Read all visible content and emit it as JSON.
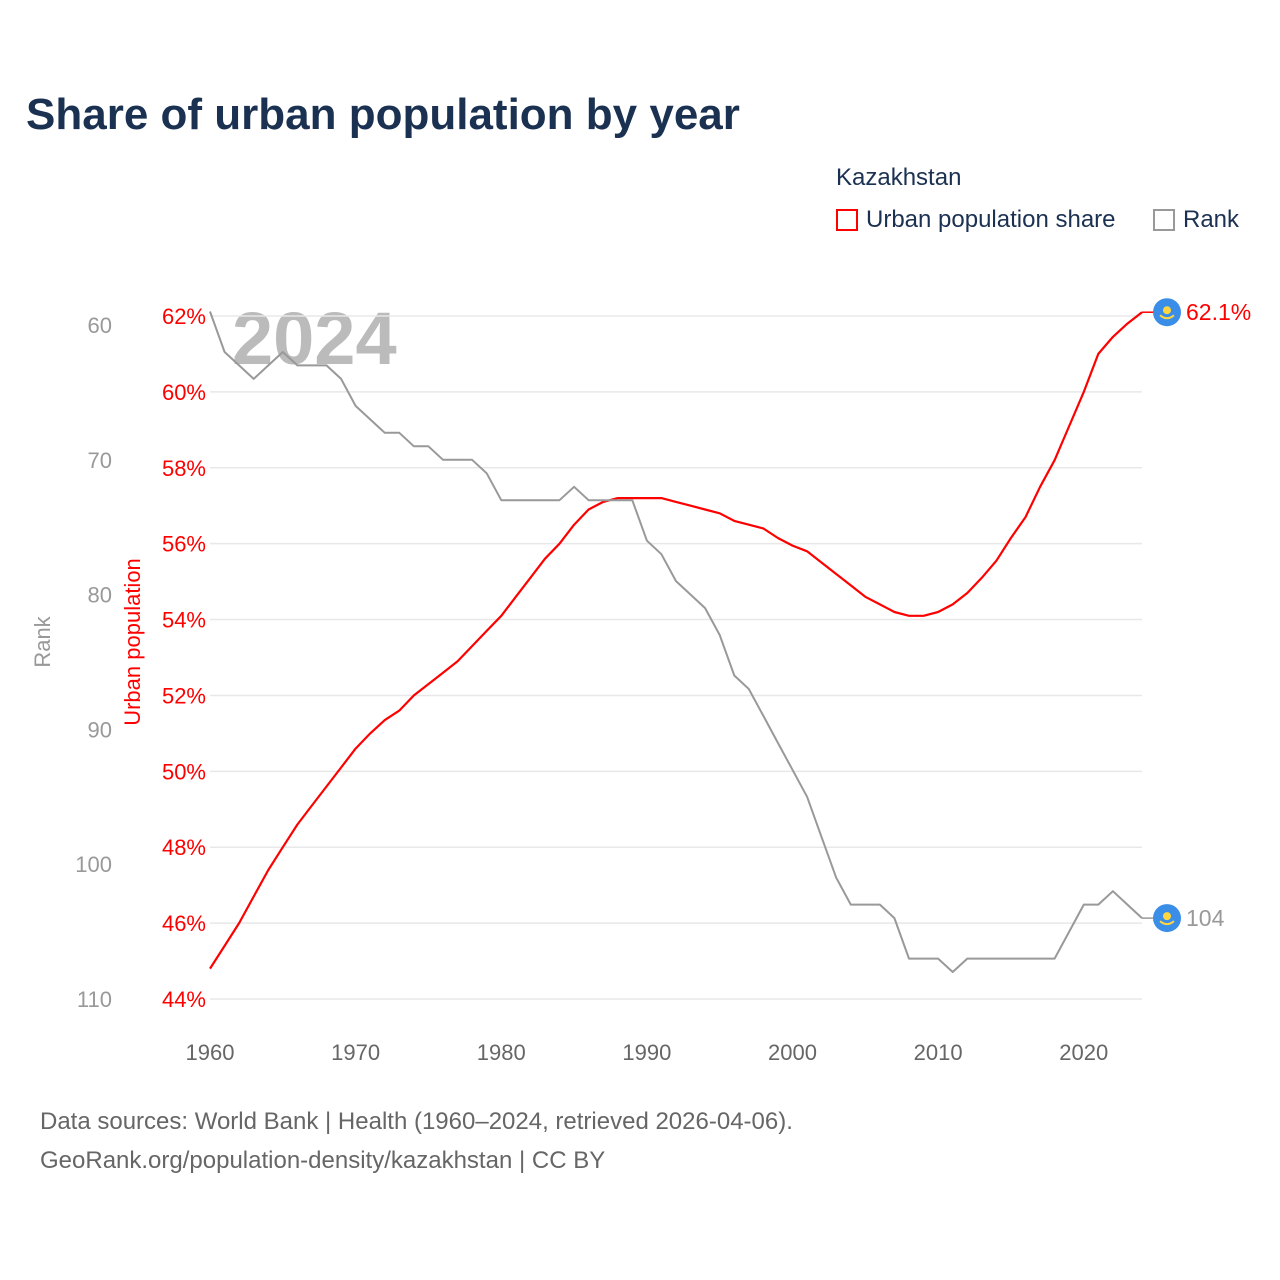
{
  "chart_data": {
    "type": "line",
    "title": "Share of urban population by year",
    "legend_title": "Kazakhstan",
    "legend_placement": "top-right",
    "watermark_year": "2024",
    "x": [
      1960,
      1961,
      1962,
      1963,
      1964,
      1965,
      1966,
      1967,
      1968,
      1969,
      1970,
      1971,
      1972,
      1973,
      1974,
      1975,
      1976,
      1977,
      1978,
      1979,
      1980,
      1981,
      1982,
      1983,
      1984,
      1985,
      1986,
      1987,
      1988,
      1989,
      1990,
      1991,
      1992,
      1993,
      1994,
      1995,
      1996,
      1997,
      1998,
      1999,
      2000,
      2001,
      2002,
      2003,
      2004,
      2005,
      2006,
      2007,
      2008,
      2009,
      2010,
      2011,
      2012,
      2013,
      2014,
      2015,
      2016,
      2017,
      2018,
      2019,
      2020,
      2021,
      2022,
      2023,
      2024
    ],
    "series": [
      {
        "name": "Urban population share",
        "axis": "left-inner",
        "color": "#ff0000",
        "end_label": "62.1%",
        "values": [
          44.8,
          45.4,
          46.0,
          46.7,
          47.4,
          48.0,
          48.6,
          49.1,
          49.6,
          50.1,
          50.6,
          51.0,
          51.35,
          51.6,
          52.0,
          52.3,
          52.6,
          52.9,
          53.3,
          53.7,
          54.1,
          54.6,
          55.1,
          55.6,
          56.0,
          56.5,
          56.9,
          57.1,
          57.2,
          57.2,
          57.2,
          57.2,
          57.1,
          57.0,
          56.9,
          56.8,
          56.6,
          56.5,
          56.4,
          56.15,
          55.95,
          55.8,
          55.5,
          55.2,
          54.9,
          54.6,
          54.4,
          54.2,
          54.1,
          54.1,
          54.2,
          54.4,
          54.7,
          55.1,
          55.55,
          56.15,
          56.7,
          57.5,
          58.2,
          59.1,
          60.0,
          61.0,
          61.45,
          61.8,
          62.1
        ]
      },
      {
        "name": "Rank",
        "axis": "left-outer",
        "color": "#999999",
        "end_label": "104",
        "values": [
          59,
          62,
          63,
          64,
          63,
          62,
          63,
          63,
          63,
          64,
          66,
          67,
          68,
          68,
          69,
          69,
          70,
          70,
          70,
          71,
          73,
          73,
          73,
          73,
          73,
          72,
          73,
          73,
          73,
          73,
          76,
          77,
          79,
          80,
          81,
          83,
          86,
          87,
          89,
          91,
          93,
          95,
          98,
          101,
          103,
          103,
          103,
          104,
          107,
          107,
          107,
          108,
          107,
          107,
          107,
          107,
          107,
          107,
          107,
          105,
          103,
          103,
          102,
          103,
          104
        ]
      }
    ],
    "x_ticks": [
      "1960",
      "1970",
      "1980",
      "1990",
      "2000",
      "2010",
      "2020"
    ],
    "x_tick_values": [
      1960,
      1970,
      1980,
      1990,
      2000,
      2010,
      2020
    ],
    "y_left_inner": {
      "label": "Urban population",
      "ylim": [
        44,
        62
      ],
      "ticks": [
        44,
        46,
        48,
        50,
        52,
        54,
        56,
        58,
        60,
        62
      ],
      "tick_labels": [
        "44%",
        "46%",
        "48%",
        "50%",
        "52%",
        "54%",
        "56%",
        "58%",
        "60%",
        "62%"
      ]
    },
    "y_left_outer": {
      "label": "Rank",
      "ylim": [
        60,
        110
      ],
      "inverted": true,
      "ticks": [
        60,
        70,
        80,
        90,
        100,
        110
      ],
      "tick_labels": [
        "60",
        "70",
        "80",
        "90",
        "100",
        "110"
      ]
    },
    "xlim": [
      1960,
      2024
    ],
    "grid": true
  },
  "footer": {
    "source": "Data sources: World Bank | Health (1960–2024, retrieved 2026-04-06).",
    "credit": "GeoRank.org/population-density/kazakhstan | CC BY"
  },
  "colors": {
    "title": "#1b3152",
    "urban": "#ff0000",
    "rank": "#999999",
    "flag_blue": "#3b8ee8",
    "flag_yellow": "#ffd640"
  }
}
